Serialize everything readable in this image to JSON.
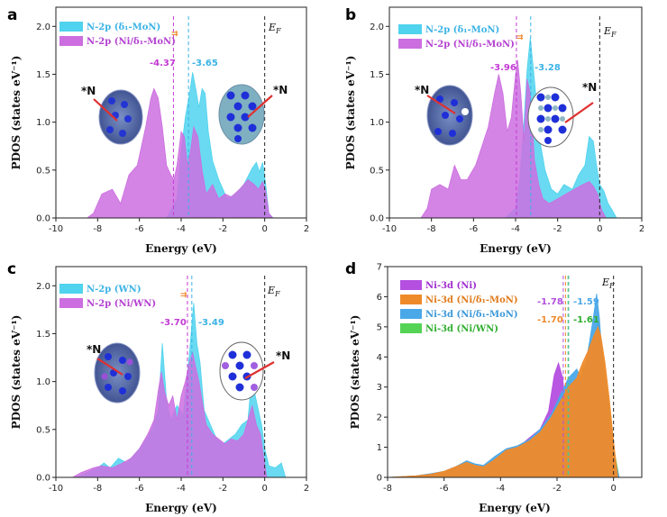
{
  "chart_data": [
    {
      "panel": "a",
      "type": "area",
      "xlabel": "Energy (eV)",
      "ylabel": "PDOS (states eV⁻¹)",
      "xlim": [
        -10,
        2
      ],
      "ylim": [
        0,
        2.2
      ],
      "xticks": [
        "-10",
        "-8",
        "-6",
        "-4",
        "-2",
        "0",
        "2"
      ],
      "yticks": [
        "0.0",
        "0.5",
        "1.0",
        "1.5",
        "2.0"
      ],
      "fermi_label": "E_F",
      "legend": [
        "N-2p (δ₁-MoN)",
        "N-2p (Ni/δ₁-MoN)"
      ],
      "series": [
        {
          "name": "N-2p (δ₁-MoN)",
          "color": "#4fd3ee",
          "x": [
            -10,
            -8,
            -6.5,
            -5.5,
            -4.7,
            -4.2,
            -4.0,
            -3.8,
            -3.6,
            -3.45,
            -3.3,
            -3.15,
            -3.0,
            -2.85,
            -2.7,
            -2.5,
            -2.2,
            -1.8,
            -1.4,
            -1.0,
            -0.6,
            -0.4,
            -0.25,
            -0.1,
            0.05,
            0.2,
            0.4,
            2
          ],
          "y": [
            0,
            0,
            0,
            0,
            0,
            0.2,
            0.7,
            1.05,
            1.3,
            1.52,
            1.35,
            1.15,
            1.35,
            1.3,
            0.9,
            0.6,
            0.4,
            0.2,
            0.25,
            0.35,
            0.52,
            0.58,
            0.48,
            0.58,
            0.35,
            0.05,
            0,
            0
          ]
        },
        {
          "name": "N-2p (Ni/δ₁-MoN)",
          "color": "#cc6ee0",
          "x": [
            -10,
            -8.5,
            -8.2,
            -7.8,
            -7.3,
            -6.9,
            -6.5,
            -6.1,
            -5.7,
            -5.45,
            -5.3,
            -5.1,
            -4.9,
            -4.7,
            -4.5,
            -4.35,
            -4.2,
            -4.0,
            -3.85,
            -3.7,
            -3.55,
            -3.4,
            -3.2,
            -3.0,
            -2.8,
            -2.5,
            -2.2,
            -1.9,
            -1.6,
            -1.2,
            -0.8,
            -0.5,
            -0.3,
            -0.1,
            0.05,
            0.2,
            0.4,
            2
          ],
          "y": [
            0,
            0,
            0.05,
            0.25,
            0.3,
            0.15,
            0.45,
            0.55,
            0.95,
            1.25,
            1.35,
            1.25,
            0.95,
            0.55,
            0.45,
            0.4,
            0.55,
            0.9,
            0.85,
            0.55,
            0.7,
            0.95,
            0.85,
            0.5,
            0.25,
            0.35,
            0.2,
            0.25,
            0.22,
            0.3,
            0.4,
            0.35,
            0.3,
            0.38,
            0.28,
            0.05,
            0,
            0
          ]
        }
      ],
      "dashed_lines": [
        {
          "x": -4.37,
          "label": "-4.37",
          "color": "#c43ad6"
        },
        {
          "x": -3.65,
          "label": "-3.65",
          "color": "#3ab3e6"
        }
      ],
      "annotations": [
        "*N",
        "*N"
      ]
    },
    {
      "panel": "b",
      "type": "area",
      "xlabel": "Energy (eV)",
      "ylabel": "PDOS (states eV⁻¹)",
      "xlim": [
        -10,
        2
      ],
      "ylim": [
        0,
        2.2
      ],
      "xticks": [
        "-10",
        "-8",
        "-6",
        "-4",
        "-2",
        "0",
        "2"
      ],
      "yticks": [
        "0.0",
        "0.5",
        "1.0",
        "1.5",
        "2.0"
      ],
      "fermi_label": "E_F",
      "legend": [
        "N-2p (δ₁-MoN)",
        "N-2p (Ni/δ₁-MoN)"
      ],
      "series": [
        {
          "name": "N-2p (δ₁-MoN)",
          "color": "#4fd3ee",
          "x": [
            -10,
            -6,
            -4.5,
            -4.0,
            -3.8,
            -3.6,
            -3.45,
            -3.3,
            -3.15,
            -3.0,
            -2.8,
            -2.6,
            -2.3,
            -2.0,
            -1.7,
            -1.3,
            -1.0,
            -0.7,
            -0.5,
            -0.3,
            -0.15,
            0.0,
            0.2,
            0.4,
            0.6,
            0.8,
            2
          ],
          "y": [
            0,
            0,
            0,
            0.1,
            0.4,
            1.0,
            1.55,
            1.88,
            1.55,
            1.2,
            0.75,
            0.5,
            0.3,
            0.25,
            0.35,
            0.3,
            0.45,
            0.55,
            0.85,
            0.8,
            0.55,
            0.35,
            0.28,
            0.15,
            0.08,
            0,
            0
          ]
        },
        {
          "name": "N-2p (Ni/δ₁-MoN)",
          "color": "#cc6ee0",
          "x": [
            -10,
            -8.5,
            -8.2,
            -8.0,
            -7.6,
            -7.2,
            -6.9,
            -6.6,
            -6.3,
            -5.9,
            -5.6,
            -5.3,
            -5.0,
            -4.8,
            -4.6,
            -4.4,
            -4.2,
            -4.0,
            -3.9,
            -3.75,
            -3.6,
            -3.45,
            -3.3,
            -3.1,
            -2.9,
            -2.7,
            -2.4,
            -2.0,
            -1.6,
            -1.2,
            -0.8,
            -0.5,
            -0.3,
            -0.1,
            0.1,
            0.3,
            2
          ],
          "y": [
            0,
            0,
            0.1,
            0.3,
            0.35,
            0.3,
            0.55,
            0.4,
            0.4,
            0.55,
            0.75,
            0.95,
            1.3,
            1.5,
            1.3,
            0.9,
            1.05,
            1.5,
            1.65,
            1.3,
            0.8,
            1.45,
            1.3,
            0.6,
            0.35,
            0.2,
            0.15,
            0.2,
            0.25,
            0.3,
            0.35,
            0.38,
            0.33,
            0.25,
            0.08,
            0,
            0
          ]
        }
      ],
      "dashed_lines": [
        {
          "x": -3.96,
          "label": "-3.96",
          "color": "#c43ad6"
        },
        {
          "x": -3.28,
          "label": "-3.28",
          "color": "#3ab3e6"
        }
      ],
      "annotations": [
        "*N",
        "*N"
      ]
    },
    {
      "panel": "c",
      "type": "area",
      "xlabel": "Energy (eV)",
      "ylabel": "PDOS (states eV⁻¹)",
      "xlim": [
        -10,
        2
      ],
      "ylim": [
        0,
        2.2
      ],
      "xticks": [
        "-10",
        "-8",
        "-6",
        "-4",
        "-2",
        "0",
        "2"
      ],
      "yticks": [
        "0.0",
        "0.5",
        "1.0",
        "1.5",
        "2.0"
      ],
      "fermi_label": "E_F",
      "legend": [
        "N-2p (WN)",
        "N-2p (Ni/WN)"
      ],
      "series": [
        {
          "name": "N-2p (WN)",
          "color": "#4fd3ee",
          "x": [
            -10,
            -9,
            -8.5,
            -8.0,
            -7.7,
            -7.4,
            -7.0,
            -6.6,
            -6.2,
            -5.8,
            -5.4,
            -5.1,
            -4.9,
            -4.7,
            -4.5,
            -4.2,
            -3.9,
            -3.6,
            -3.4,
            -3.25,
            -3.1,
            -2.9,
            -2.6,
            -2.3,
            -2.0,
            -1.7,
            -1.4,
            -1.1,
            -0.8,
            -0.6,
            -0.45,
            -0.3,
            -0.15,
            0.0,
            0.2,
            0.5,
            0.8,
            1.0,
            2
          ],
          "y": [
            0,
            0,
            0.05,
            0.1,
            0.15,
            0.1,
            0.2,
            0.15,
            0.25,
            0.35,
            0.5,
            0.7,
            1.4,
            0.8,
            0.6,
            0.75,
            0.65,
            1.3,
            1.82,
            1.4,
            1.2,
            0.7,
            0.55,
            0.4,
            0.35,
            0.4,
            0.45,
            0.55,
            0.6,
            1.1,
            0.85,
            0.7,
            0.55,
            0.3,
            0.12,
            0.1,
            0.15,
            0,
            0
          ]
        },
        {
          "name": "N-2p (Ni/WN)",
          "color": "#cc6ee0",
          "x": [
            -10,
            -9.2,
            -8.8,
            -8.2,
            -7.8,
            -7.3,
            -6.8,
            -6.4,
            -6.0,
            -5.6,
            -5.3,
            -5.1,
            -4.95,
            -4.8,
            -4.6,
            -4.4,
            -4.2,
            -4.0,
            -3.8,
            -3.6,
            -3.45,
            -3.3,
            -3.15,
            -3.0,
            -2.8,
            -2.5,
            -2.2,
            -1.9,
            -1.6,
            -1.3,
            -1.0,
            -0.8,
            -0.6,
            -0.4,
            -0.2,
            -0.05,
            0.1,
            2
          ],
          "y": [
            0,
            0,
            0.05,
            0.1,
            0.12,
            0.1,
            0.15,
            0.2,
            0.3,
            0.45,
            0.6,
            0.9,
            1.1,
            0.9,
            0.75,
            0.85,
            0.6,
            0.85,
            1.0,
            1.2,
            1.3,
            1.15,
            1.0,
            0.8,
            0.55,
            0.45,
            0.4,
            0.35,
            0.4,
            0.38,
            0.45,
            0.6,
            0.75,
            0.55,
            0.45,
            0.2,
            0,
            0
          ]
        }
      ],
      "dashed_lines": [
        {
          "x": -3.7,
          "label": "-3.70",
          "color": "#c43ad6"
        },
        {
          "x": -3.49,
          "label": "-3.49",
          "color": "#3ab3e6"
        }
      ],
      "annotations": [
        "*N",
        "*N"
      ]
    },
    {
      "panel": "d",
      "type": "area",
      "xlabel": "Energy (eV)",
      "ylabel": "PDOS (states eV⁻¹)",
      "xlim": [
        -8,
        1
      ],
      "ylim": [
        0,
        7
      ],
      "xticks": [
        "-8",
        "-6",
        "-4",
        "-2",
        "0"
      ],
      "yticks": [
        "0",
        "1",
        "2",
        "3",
        "4",
        "5",
        "6",
        "7"
      ],
      "fermi_label": "E_F",
      "legend": [
        "Ni-3d (Ni)",
        "Ni-3d (Ni/δ₁-MoN)",
        "Ni-3d (Ni/δ₁-MoN)",
        "Ni-3d (Ni/WN)"
      ],
      "series": [
        {
          "name": "Ni-3d (Ni)",
          "color": "#b44fe0",
          "x": [
            -8,
            -6,
            -4.5,
            -4.0,
            -3.5,
            -3.0,
            -2.6,
            -2.3,
            -2.1,
            -1.95,
            -1.8,
            -1.7,
            -1.6,
            -1.5,
            -1.4,
            0
          ],
          "y": [
            0,
            0,
            0,
            0.3,
            0.9,
            1.3,
            1.6,
            2.2,
            3.4,
            3.8,
            3.3,
            2.0,
            0.8,
            0.2,
            0,
            0
          ]
        },
        {
          "name": "Ni-3d (Ni/WN)",
          "color": "#55d355",
          "x": [
            -8,
            -2.0,
            -1.8,
            -1.5,
            -1.3,
            -1.1,
            -0.9,
            -0.7,
            -0.55,
            -0.4,
            -0.25,
            -0.1,
            0.0,
            0.2,
            1
          ],
          "y": [
            0,
            0,
            0.3,
            1.5,
            2.6,
            3.6,
            3.8,
            4.5,
            5.2,
            4.3,
            3.0,
            2.0,
            1.0,
            0,
            0
          ]
        },
        {
          "name": "Ni-3d (Ni/δ₁-MoN)",
          "color": "#4aa8e8",
          "x": [
            -8,
            -7,
            -6.5,
            -6.0,
            -5.6,
            -5.2,
            -4.9,
            -4.6,
            -4.2,
            -3.8,
            -3.4,
            -3.0,
            -2.6,
            -2.2,
            -1.9,
            -1.6,
            -1.3,
            -1.15,
            -1.0,
            -0.85,
            -0.7,
            -0.6,
            -0.5,
            -0.4,
            -0.25,
            -0.1,
            0.05,
            0.2,
            1
          ],
          "y": [
            0,
            0.05,
            0.12,
            0.2,
            0.35,
            0.55,
            0.45,
            0.4,
            0.7,
            0.95,
            1.05,
            1.25,
            1.6,
            2.1,
            2.7,
            3.3,
            3.6,
            3.3,
            3.7,
            4.5,
            5.4,
            6.1,
            5.3,
            4.0,
            2.8,
            1.6,
            0.6,
            0,
            0
          ]
        },
        {
          "name": "Ni-3d (Ni/δ₁-MoN)",
          "color": "#ef8a2b",
          "x": [
            -8,
            -7,
            -6.5,
            -6.0,
            -5.6,
            -5.2,
            -4.9,
            -4.6,
            -4.2,
            -3.8,
            -3.4,
            -3.0,
            -2.6,
            -2.2,
            -1.9,
            -1.6,
            -1.3,
            -1.1,
            -0.9,
            -0.7,
            -0.55,
            -0.45,
            -0.3,
            -0.15,
            0.0,
            0.15,
            1
          ],
          "y": [
            0,
            0.05,
            0.1,
            0.2,
            0.35,
            0.5,
            0.4,
            0.35,
            0.6,
            0.9,
            1.0,
            1.2,
            1.5,
            2.0,
            2.5,
            3.0,
            3.3,
            3.8,
            4.2,
            4.7,
            5.0,
            4.7,
            3.8,
            2.6,
            1.2,
            0,
            0
          ]
        }
      ],
      "dashed_lines": [
        {
          "x": -1.78,
          "label": "-1.78",
          "color": "#b44fe0"
        },
        {
          "x": -1.7,
          "label": "-1.70",
          "color": "#ef8a2b"
        },
        {
          "x": -1.59,
          "label": "-1.59",
          "color": "#4aa8e8"
        },
        {
          "x": -1.61,
          "label": "-1.61",
          "color": "#55d355"
        }
      ]
    }
  ]
}
